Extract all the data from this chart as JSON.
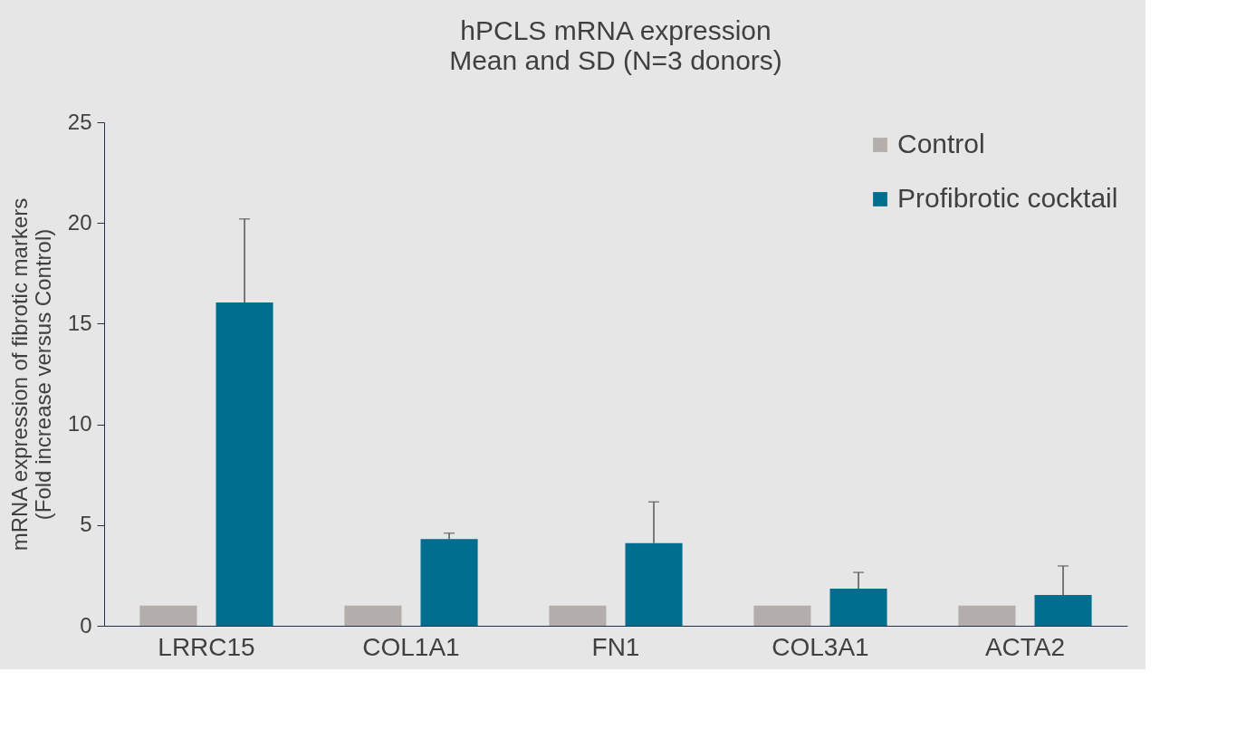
{
  "chart_data": {
    "type": "bar",
    "title": "hPCLS mRNA expression",
    "subtitle": "Mean and SD (N=3 donors)",
    "ylabel": "mRNA expression of fibrotic markers (Fold increase versus Control)",
    "categories": [
      "LRRC15",
      "COL1A1",
      "FN1",
      "COL3A1",
      "ACTA2"
    ],
    "series": [
      {
        "name": "Control",
        "color": "#b3adab",
        "values": [
          1.0,
          1.0,
          1.0,
          1.0,
          1.0
        ]
      },
      {
        "name": "Profibrotic cocktail",
        "color": "#006e8f",
        "values": [
          16.05,
          4.3,
          4.1,
          1.84,
          1.53
        ],
        "errors": [
          [
            16.05,
            20.2
          ],
          [
            4.3,
            4.6
          ],
          [
            4.1,
            6.15
          ],
          [
            1.84,
            2.65
          ],
          [
            1.53,
            2.97
          ]
        ]
      }
    ],
    "ylim": [
      0,
      25
    ],
    "yticks": [
      0,
      5,
      10,
      15,
      20,
      25
    ],
    "grid": false,
    "legend": "top right"
  }
}
